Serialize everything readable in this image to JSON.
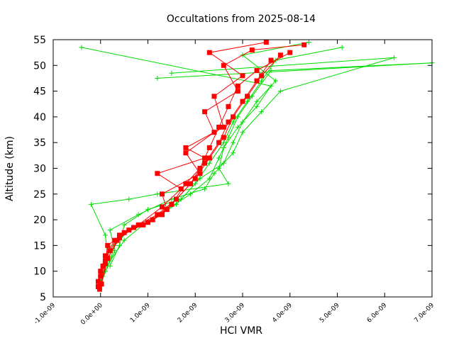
{
  "chart_data": {
    "type": "line",
    "title": "Occultations from 2025-08-14",
    "xlabel": "HCl VMR",
    "ylabel": "Altitude (km)",
    "xlim": [
      -1e-09,
      7e-09
    ],
    "ylim": [
      5,
      55
    ],
    "x_tick_labels": [
      "-1.0e-09",
      "0.0e+00",
      "1.0e-09",
      "2.0e-09",
      "3.0e-09",
      "4.0e-09",
      "5.0e-09",
      "6.0e-09",
      "7.0e-09"
    ],
    "y_tick_labels": [
      "5",
      "10",
      "15",
      "20",
      "25",
      "30",
      "35",
      "40",
      "45",
      "50",
      "55"
    ],
    "grid": false,
    "legend": "none",
    "series": [
      {
        "color": "#00dd00",
        "marker": "plus",
        "profiles": [
          {
            "x": [
              -2e-11,
              1.5e-10,
              3e-10,
              6e-10,
              1.1e-09,
              1.6e-09,
              2e-09,
              2.3e-09,
              2.6e-09,
              2.8e-09,
              3.1e-09,
              3.4e-09,
              3.7e-09,
              5.1e-09
            ],
            "y": [
              7,
              11,
              15,
              18,
              20,
              23,
              27,
              31,
              35,
              39,
              43,
              47,
              51,
              53.5
            ]
          },
          {
            "x": [
              0.0,
              2e-10,
              5e-10,
              9e-10,
              1.4e-09,
              1.9e-09,
              2.3e-09,
              2.5e-09,
              2.7e-09,
              2.9e-09,
              3.2e-09,
              3.6e-09,
              7e-09,
              1.2e-09
            ],
            "y": [
              8,
              12,
              16,
              19,
              22,
              25,
              28,
              32,
              36,
              40,
              44,
              49,
              50.5,
              47.5
            ]
          },
          {
            "x": [
              5e-11,
              1.5e-10,
              1e-10,
              -2e-10,
              6e-10,
              1.2e-09,
              2.7e-09,
              2.5e-09,
              2.6e-09,
              2.9e-09,
              3.3e-09,
              3.6e-09,
              -4e-10
            ],
            "y": [
              9,
              13,
              17,
              23,
              24,
              25,
              27,
              30,
              34,
              38,
              42,
              46,
              53.5
            ]
          },
          {
            "x": [
              1e-10,
              3e-10,
              2e-10,
              8e-10,
              1.5e-09,
              2.2e-09,
              2.4e-09,
              2.8e-09,
              3e-09,
              3.4e-09,
              3.8e-09,
              6.2e-09,
              1.5e-09
            ],
            "y": [
              10,
              14,
              18,
              21,
              24,
              26,
              29,
              33,
              37,
              41,
              45,
              51.5,
              48.5
            ]
          },
          {
            "x": [
              2e-10,
              4e-10,
              5e-10,
              1e-09,
              1.7e-09,
              2.1e-09,
              2.6e-09,
              2.8e-09,
              3e-09,
              3.3e-09,
              3.7e-09,
              3e-09,
              4.4e-09
            ],
            "y": [
              11,
              15,
              19,
              22,
              24,
              28,
              31,
              35,
              39,
              43,
              47,
              52,
              54.5
            ]
          }
        ]
      },
      {
        "color": "#ff0000",
        "marker": "square",
        "profiles": [
          {
            "x": [
              -5e-11,
              0.0,
              1e-10,
              3e-10,
              6e-10,
              1.1e-09,
              1.5e-09,
              1.8e-09,
              2.2e-09,
              2.5e-09,
              2.7e-09,
              3e-09,
              3.3e-09,
              3.6e-09
            ],
            "y": [
              7,
              10,
              13,
              16,
              18,
              20,
              23,
              27,
              31,
              35,
              39,
              43,
              47,
              51
            ]
          },
          {
            "x": [
              -5e-11,
              5e-11,
              2e-10,
              4e-10,
              9e-10,
              1.3e-09,
              1.6e-09,
              2e-09,
              2.3e-09,
              2.6e-09,
              2.8e-09,
              3.1e-09,
              3.4e-09,
              3.8e-09
            ],
            "y": [
              8,
              11,
              14,
              17,
              19,
              21,
              24,
              28,
              32,
              36,
              40,
              44,
              48,
              52
            ]
          },
          {
            "x": [
              0.0,
              1e-10,
              1.5e-10,
              5e-10,
              1e-09,
              1.4e-09,
              1.3e-09,
              2.1e-09,
              1.8e-09,
              2.4e-09,
              2.2e-09,
              2.9e-09,
              2.6e-09,
              3.2e-09,
              4.3e-09
            ],
            "y": [
              9,
              12,
              15,
              17.5,
              19.5,
              22,
              25,
              29,
              33,
              37,
              41,
              45,
              50,
              53,
              54
            ]
          },
          {
            "x": [
              -2e-11,
              1e-10,
              3.5e-10,
              7e-10,
              1.2e-09,
              1.6e-09,
              1.9e-09,
              2.1e-09,
              2.3e-09,
              2.5e-09,
              2.7e-09,
              2.9e-09,
              3.3e-09,
              4e-09
            ],
            "y": [
              6.5,
              11.5,
              16,
              18.5,
              21,
              24,
              27,
              30,
              34,
              38,
              42,
              46,
              49,
              52.5
            ]
          },
          {
            "x": [
              2e-11,
              1.5e-10,
              4e-10,
              8e-10,
              1.3e-09,
              1.7e-09,
              1.2e-09,
              2.2e-09,
              1.8e-09,
              2.6e-09,
              2.4e-09,
              3e-09,
              2.3e-09,
              3.5e-09
            ],
            "y": [
              7.5,
              12.5,
              16.5,
              19,
              22.5,
              26,
              29,
              32,
              34,
              38,
              44,
              48,
              52.5,
              54.5
            ]
          }
        ]
      }
    ]
  }
}
